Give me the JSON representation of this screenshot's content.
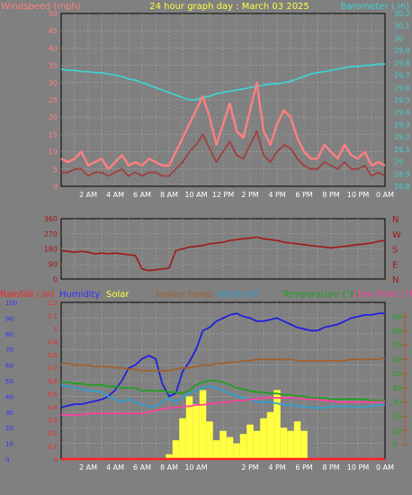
{
  "chart_data": [
    {
      "type": "line",
      "title": "24 hour graph day : March 03 2025",
      "ylabel_left": "Windspeed (mph)",
      "ylabel_right": "Barometer (.in)",
      "ylim_left": [
        0,
        50
      ],
      "ylim_right": [
        28.8,
        30.2
      ],
      "y_ticks_left": [
        "0",
        "5",
        "10",
        "15",
        "20",
        "25",
        "30",
        "35",
        "40",
        "45",
        "50"
      ],
      "y_ticks_right": [
        "28.8",
        "28.9",
        "29",
        "29.1",
        "29.2",
        "29.3",
        "29.4",
        "29.5",
        "29.6",
        "29.7",
        "29.8",
        "29.9",
        "30",
        "30.1",
        "30.2"
      ],
      "x_ticks": [
        "2 AM",
        "4 AM",
        "6 AM",
        "8 AM",
        "10 AM",
        "12 PM",
        "2 PM",
        "4 PM",
        "6 PM",
        "8 PM",
        "10 PM",
        "0 AM"
      ],
      "x_hours": [
        0,
        0.5,
        1,
        1.5,
        2,
        2.5,
        3,
        3.5,
        4,
        4.5,
        5,
        5.5,
        6,
        6.5,
        7,
        7.5,
        8,
        8.5,
        9,
        9.5,
        10,
        10.5,
        11,
        11.5,
        12,
        12.5,
        13,
        13.5,
        14,
        14.5,
        15,
        15.5,
        16,
        16.5,
        17,
        17.5,
        18,
        18.5,
        19,
        19.5,
        20,
        20.5,
        21,
        21.5,
        22,
        22.5,
        23,
        23.5,
        24
      ],
      "series": [
        {
          "name": "Barometer",
          "axis": "right",
          "color": "#40d0d0",
          "values": [
            29.75,
            29.74,
            29.74,
            29.73,
            29.73,
            29.72,
            29.72,
            29.71,
            29.7,
            29.69,
            29.67,
            29.66,
            29.64,
            29.62,
            29.6,
            29.58,
            29.56,
            29.54,
            29.52,
            29.5,
            29.5,
            29.52,
            29.53,
            29.55,
            29.56,
            29.57,
            29.58,
            29.59,
            29.6,
            29.61,
            29.62,
            29.63,
            29.63,
            29.64,
            29.65,
            29.67,
            29.69,
            29.71,
            29.72,
            29.73,
            29.74,
            29.75,
            29.76,
            29.77,
            29.77,
            29.78,
            29.78,
            29.79,
            29.79
          ]
        },
        {
          "name": "Wind gust",
          "axis": "left",
          "color": "#ff8080",
          "values": [
            8,
            7,
            8,
            10,
            6,
            7,
            8,
            5,
            7,
            9,
            6,
            7,
            6,
            8,
            7,
            6,
            6,
            10,
            14,
            18,
            22,
            26,
            20,
            12,
            18,
            24,
            16,
            14,
            22,
            30,
            16,
            12,
            18,
            22,
            20,
            14,
            10,
            8,
            8,
            12,
            10,
            8,
            12,
            9,
            8,
            10,
            6,
            7,
            6
          ]
        },
        {
          "name": "Wind speed",
          "axis": "left",
          "color": "#a04040",
          "values": [
            4,
            4,
            5,
            5,
            3,
            4,
            4,
            3,
            4,
            5,
            3,
            4,
            3,
            4,
            4,
            3,
            3,
            5,
            7,
            10,
            12,
            15,
            11,
            7,
            10,
            13,
            9,
            8,
            12,
            16,
            9,
            7,
            10,
            12,
            11,
            8,
            6,
            5,
            5,
            7,
            6,
            5,
            7,
            5,
            5,
            6,
            3,
            4,
            3
          ]
        }
      ]
    },
    {
      "type": "line",
      "ylim": [
        0,
        360
      ],
      "y_ticks": [
        "0",
        "90",
        "180",
        "270",
        "360"
      ],
      "direction_labels": [
        "N",
        "W",
        "S",
        "E",
        "N"
      ],
      "series": [
        {
          "name": "Wind direction",
          "color": "#a01818",
          "values": [
            170,
            165,
            160,
            165,
            160,
            150,
            155,
            150,
            155,
            150,
            145,
            140,
            60,
            50,
            55,
            60,
            65,
            170,
            180,
            190,
            195,
            200,
            210,
            215,
            220,
            230,
            235,
            240,
            245,
            250,
            240,
            235,
            230,
            220,
            215,
            210,
            205,
            200,
            195,
            190,
            185,
            190,
            195,
            200,
            205,
            210,
            215,
            225,
            230
          ]
        }
      ]
    },
    {
      "type": "line",
      "legend": [
        {
          "label": "Rainfall (.in)",
          "color": "#ff2020"
        },
        {
          "label": "Humidity",
          "color": "#3030ff"
        },
        {
          "label": "Solar",
          "color": "#ffff40"
        },
        {
          "label": "Indoor temp",
          "color": "#a06030"
        },
        {
          "label": "Windchill",
          "color": "#30a0d0"
        },
        {
          "label": "Temperature (°F)",
          "color": "#20a020"
        },
        {
          "label": "Dew Point (°F",
          "color": "#ff40a0"
        }
      ],
      "ylim_left": [
        0,
        100
      ],
      "y_ticks_left": [
        "0",
        "10",
        "20",
        "30",
        "40",
        "50",
        "60",
        "70",
        "80",
        "90",
        "100"
      ],
      "ylim_rain": [
        0,
        1.2
      ],
      "y_ticks_rain": [
        "0",
        "0.1",
        "0.2",
        "0.3",
        "0.4",
        "0.5",
        "0.6",
        "0.7",
        "0.8",
        "0.9",
        "1",
        "1.1",
        "1.2"
      ],
      "ylim_right": [
        -10,
        100
      ],
      "y_ticks_right": [
        "0",
        "10",
        "20",
        "30",
        "40",
        "50",
        "60",
        "70",
        "80",
        "90"
      ],
      "x_ticks": [
        "2 AM",
        "4 AM",
        "6 AM",
        "8 AM",
        "10 AM",
        "2 PM",
        "4 PM",
        "6 PM",
        "8 PM",
        "10 PM",
        "0 AM"
      ],
      "series": [
        {
          "name": "Humidity",
          "color": "#2020e0",
          "values": [
            33,
            34,
            35,
            35,
            36,
            37,
            38,
            40,
            44,
            50,
            58,
            60,
            64,
            66,
            64,
            48,
            40,
            42,
            56,
            62,
            70,
            82,
            84,
            88,
            90,
            92,
            93,
            91,
            90,
            88,
            88,
            89,
            90,
            88,
            86,
            84,
            83,
            82,
            82,
            84,
            85,
            86,
            88,
            90,
            91,
            92,
            92,
            93,
            93
          ]
        },
        {
          "name": "Indoor temp",
          "color": "#a06030",
          "values": [
            57,
            57,
            56,
            56,
            56,
            55,
            55,
            55,
            54,
            54,
            53,
            53,
            52,
            52,
            52,
            52,
            52,
            53,
            54,
            54,
            55,
            56,
            56,
            57,
            57,
            58,
            58,
            59,
            59,
            60,
            60,
            60,
            60,
            60,
            60,
            59,
            59,
            59,
            59,
            59,
            59,
            59,
            59,
            60,
            60,
            60,
            60,
            60,
            61
          ]
        },
        {
          "name": "Temperature",
          "color": "#20a020",
          "values": [
            44,
            44,
            43,
            43,
            42,
            42,
            42,
            41,
            41,
            40,
            40,
            40,
            38,
            38,
            38,
            38,
            37,
            37,
            36,
            38,
            42,
            44,
            45,
            45,
            44,
            42,
            40,
            39,
            38,
            37,
            37,
            36,
            36,
            35,
            35,
            34,
            34,
            33,
            33,
            33,
            32,
            32,
            32,
            32,
            32,
            32,
            31,
            31,
            31
          ]
        },
        {
          "name": "Windchill",
          "color": "#30a0d0",
          "values": [
            42,
            41,
            40,
            39,
            38,
            38,
            37,
            34,
            32,
            30,
            32,
            30,
            28,
            27,
            27,
            30,
            33,
            30,
            33,
            36,
            38,
            40,
            41,
            40,
            38,
            36,
            34,
            33,
            32,
            30,
            30,
            30,
            29,
            28,
            28,
            27,
            27,
            26,
            26,
            26,
            27,
            27,
            27,
            27,
            26,
            27,
            27,
            28,
            28
          ]
        },
        {
          "name": "Dew Point",
          "color": "#ff40a0",
          "values": [
            21,
            21,
            21,
            21,
            22,
            22,
            22,
            22,
            22,
            22,
            22,
            22,
            22,
            23,
            24,
            25,
            26,
            26,
            27,
            27,
            28,
            28,
            29,
            29,
            30,
            30,
            31,
            31,
            32,
            32,
            33,
            33,
            33,
            33,
            33,
            33,
            32,
            32,
            32,
            31,
            31,
            30,
            30,
            30,
            30,
            30,
            30,
            30,
            30
          ]
        },
        {
          "name": "Solar",
          "color": "#ffff40",
          "values": [
            0,
            0,
            0,
            0,
            0,
            0,
            0,
            0,
            0,
            0,
            0,
            0,
            0,
            0,
            0,
            0,
            3,
            12,
            26,
            40,
            35,
            44,
            24,
            12,
            18,
            14,
            10,
            16,
            22,
            18,
            26,
            30,
            44,
            20,
            18,
            24,
            18,
            0,
            0,
            0,
            0,
            0,
            0,
            0,
            0,
            0,
            0,
            0,
            0
          ]
        },
        {
          "name": "Rainfall",
          "color": "#ff2020",
          "values": [
            0,
            0,
            0,
            0,
            0,
            0,
            0,
            0,
            0,
            0,
            0,
            0,
            0,
            0,
            0,
            0,
            0,
            0,
            0,
            0,
            0,
            0,
            0,
            0,
            0,
            0,
            0,
            0,
            0,
            0,
            0,
            0,
            0,
            0,
            0,
            0,
            0,
            0,
            0,
            0,
            0,
            0,
            0,
            0,
            0,
            0,
            0,
            0,
            0
          ]
        }
      ]
    }
  ]
}
